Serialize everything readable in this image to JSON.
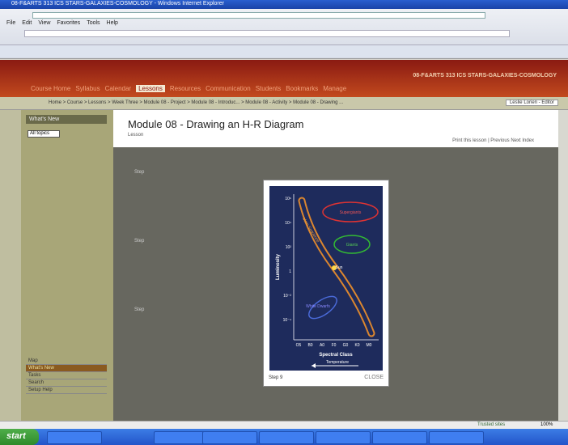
{
  "window": {
    "title": "08-F&ARTS 313 ICS STARS-GALAXIES-COSMOLOGY - Windows Internet Explorer"
  },
  "browser": {
    "menu": [
      "File",
      "Edit",
      "View",
      "Favorites",
      "Tools",
      "Help"
    ]
  },
  "course": {
    "title": "08-F&ARTS 313 ICS STARS-GALAXIES-COSMOLOGY",
    "tabs": [
      "Course Home",
      "Syllabus",
      "Calendar",
      "Lessons",
      "Resources",
      "Communication",
      "Students",
      "Bookmarks",
      "Manage"
    ],
    "breadcrumb": "Home > Course > Lessons > Week Three > Module 08 - Project > Module 08 - Introduc... > Module 08 - Activity > Module 08 - Drawing ...",
    "user": "Leslie Lorien - Editor"
  },
  "sidebar": {
    "title": "What's New",
    "filter": "All topics",
    "items": [
      "Map",
      "What's New",
      "Tasks",
      "Search",
      "Setup Help"
    ]
  },
  "lesson": {
    "title": "Module 08 - Drawing an H-R Diagram",
    "subtitle": "Lesson",
    "links": "Print this lesson | Previous Next Index",
    "steps": [
      "Step",
      "Step",
      "Step"
    ]
  },
  "popup": {
    "diagram": {
      "regions": [
        "Supergiants",
        "Giants",
        "Main Sequence",
        "Sun",
        "White Dwarfs"
      ],
      "y_label": "Luminosity",
      "x_label": "Spectral Class",
      "arrow_label": "Temperature",
      "y_ticks": [
        "10⁶",
        "10⁴",
        "10²",
        "1",
        "10⁻²",
        "10⁻⁴"
      ],
      "x_ticks": [
        "O5",
        "B0",
        "A0",
        "F0",
        "G0",
        "K0",
        "M0"
      ]
    },
    "step": "Step 9",
    "close": "CLOSE"
  },
  "taskbar": {
    "start": "start"
  },
  "status": {
    "zone": "Trusted sites",
    "zoom": "100%"
  }
}
